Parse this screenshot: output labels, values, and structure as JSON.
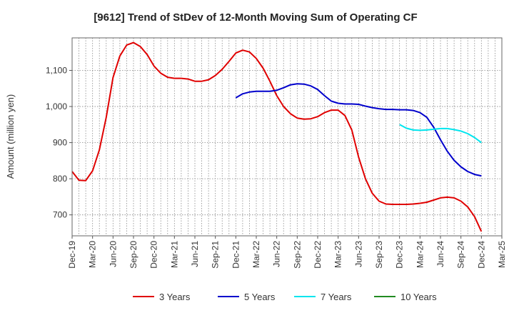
{
  "chart_data": {
    "type": "line",
    "title": "[9612]  Trend of StDev of 12-Month Moving Sum of Operating CF",
    "xlabel": "",
    "ylabel": "Amount (million yen)",
    "categories": [
      "Dec-19",
      "Mar-20",
      "Jun-20",
      "Sep-20",
      "Dec-20",
      "Mar-21",
      "Jun-21",
      "Sep-21",
      "Dec-21",
      "Mar-22",
      "Jun-22",
      "Sep-22",
      "Dec-22",
      "Mar-23",
      "Jun-23",
      "Sep-23",
      "Dec-23",
      "Mar-24",
      "Jun-24",
      "Sep-24",
      "Dec-24",
      "Mar-25"
    ],
    "yticks": [
      "700",
      "800",
      "900",
      "1,000",
      "1,100"
    ],
    "ylim": [
      642,
      1190
    ],
    "grid": true,
    "legend_position": "bottom",
    "series": [
      {
        "name": "3 Years",
        "color": "#e00000",
        "points": [
          [
            0,
            820
          ],
          [
            1,
            796
          ],
          [
            2,
            795
          ],
          [
            3,
            822
          ],
          [
            4,
            880
          ],
          [
            5,
            970
          ],
          [
            6,
            1080
          ],
          [
            7,
            1140
          ],
          [
            8,
            1170
          ],
          [
            9,
            1177
          ],
          [
            10,
            1166
          ],
          [
            11,
            1144
          ],
          [
            12,
            1112
          ],
          [
            13,
            1092
          ],
          [
            14,
            1081
          ],
          [
            15,
            1078
          ],
          [
            16,
            1078
          ],
          [
            17,
            1076
          ],
          [
            18,
            1070
          ],
          [
            19,
            1070
          ],
          [
            20,
            1074
          ],
          [
            21,
            1086
          ],
          [
            22,
            1103
          ],
          [
            23,
            1125
          ],
          [
            24,
            1148
          ],
          [
            25,
            1156
          ],
          [
            26,
            1151
          ],
          [
            27,
            1133
          ],
          [
            28,
            1106
          ],
          [
            29,
            1070
          ],
          [
            30,
            1030
          ],
          [
            31,
            1000
          ],
          [
            32,
            980
          ],
          [
            33,
            968
          ],
          [
            34,
            965
          ],
          [
            35,
            966
          ],
          [
            36,
            972
          ],
          [
            37,
            983
          ],
          [
            38,
            990
          ],
          [
            39,
            990
          ],
          [
            40,
            975
          ],
          [
            41,
            935
          ],
          [
            42,
            860
          ],
          [
            43,
            800
          ],
          [
            44,
            760
          ],
          [
            45,
            738
          ],
          [
            46,
            730
          ],
          [
            47,
            729
          ],
          [
            48,
            729
          ],
          [
            49,
            729
          ],
          [
            50,
            730
          ],
          [
            51,
            732
          ],
          [
            52,
            735
          ],
          [
            53,
            741
          ],
          [
            54,
            747
          ],
          [
            55,
            749
          ],
          [
            56,
            747
          ],
          [
            57,
            738
          ],
          [
            58,
            722
          ],
          [
            59,
            695
          ],
          [
            60,
            654
          ]
        ]
      },
      {
        "name": "5 Years",
        "color": "#0000cc",
        "points": [
          [
            24,
            1024
          ],
          [
            25,
            1035
          ],
          [
            26,
            1040
          ],
          [
            27,
            1042
          ],
          [
            28,
            1042
          ],
          [
            29,
            1042
          ],
          [
            30,
            1045
          ],
          [
            31,
            1052
          ],
          [
            32,
            1060
          ],
          [
            33,
            1063
          ],
          [
            34,
            1062
          ],
          [
            35,
            1057
          ],
          [
            36,
            1047
          ],
          [
            37,
            1030
          ],
          [
            38,
            1015
          ],
          [
            39,
            1009
          ],
          [
            40,
            1007
          ],
          [
            41,
            1007
          ],
          [
            42,
            1006
          ],
          [
            43,
            1001
          ],
          [
            44,
            997
          ],
          [
            45,
            994
          ],
          [
            46,
            992
          ],
          [
            47,
            992
          ],
          [
            48,
            991
          ],
          [
            49,
            991
          ],
          [
            50,
            989
          ],
          [
            51,
            983
          ],
          [
            52,
            970
          ],
          [
            53,
            943
          ],
          [
            54,
            908
          ],
          [
            55,
            876
          ],
          [
            56,
            851
          ],
          [
            57,
            833
          ],
          [
            58,
            820
          ],
          [
            59,
            812
          ],
          [
            60,
            808
          ]
        ]
      },
      {
        "name": "7 Years",
        "color": "#00e5ee",
        "points": [
          [
            48,
            950
          ],
          [
            49,
            940
          ],
          [
            50,
            935
          ],
          [
            51,
            934
          ],
          [
            52,
            935
          ],
          [
            53,
            937
          ],
          [
            54,
            939
          ],
          [
            55,
            939
          ],
          [
            56,
            936
          ],
          [
            57,
            932
          ],
          [
            58,
            925
          ],
          [
            59,
            914
          ],
          [
            60,
            900
          ]
        ]
      },
      {
        "name": "10 Years",
        "color": "#228b22",
        "points": []
      }
    ]
  }
}
